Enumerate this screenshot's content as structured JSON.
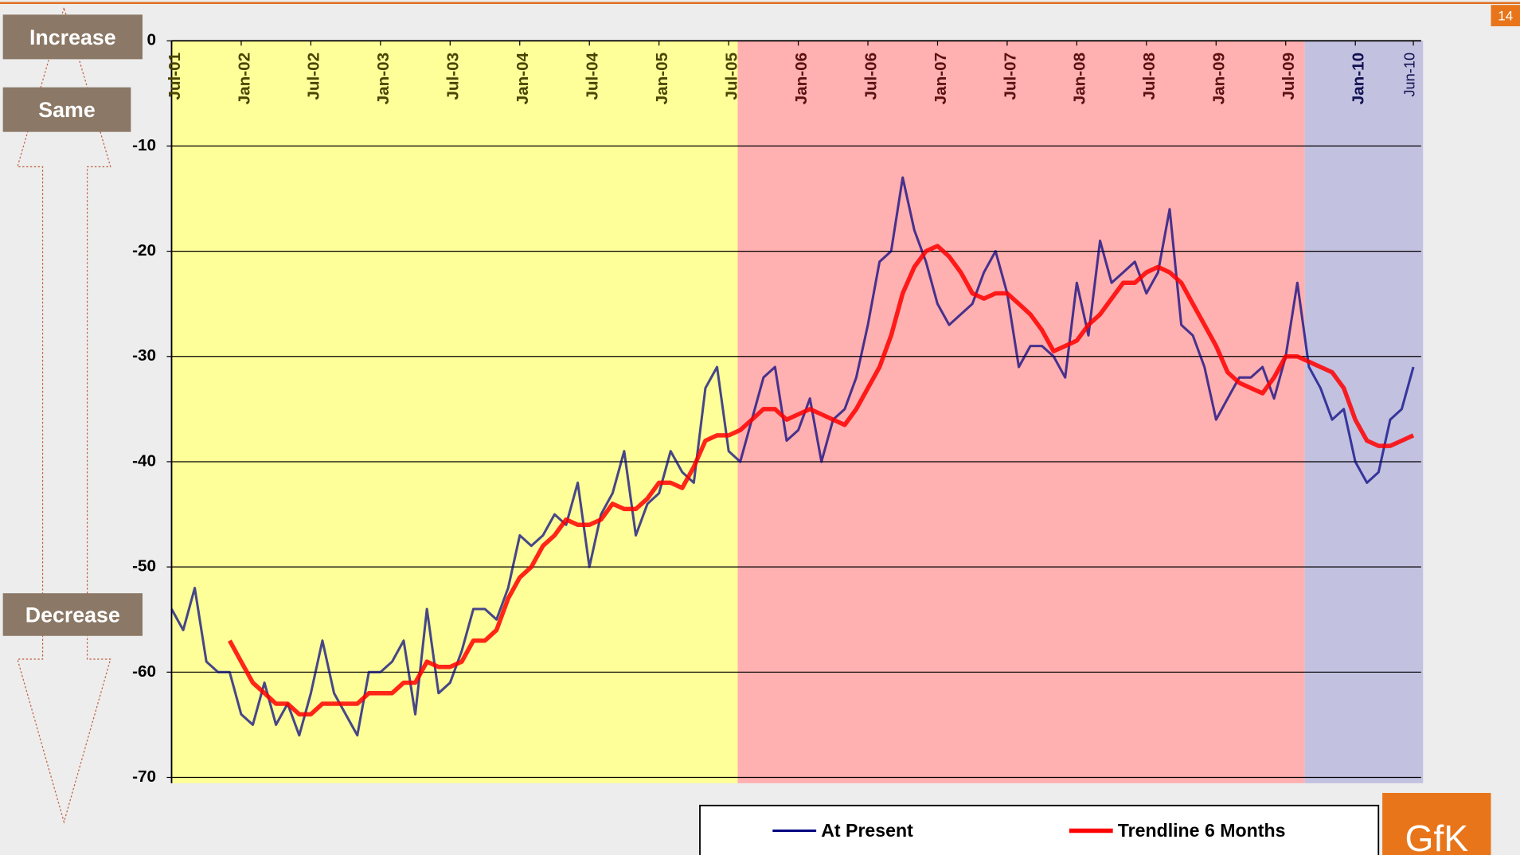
{
  "page_number": "14",
  "logo": "GfK",
  "scale_labels": [
    "Increase",
    "Same",
    "Decrease"
  ],
  "chart_data": {
    "type": "line",
    "categories": [
      "Jul-01",
      null,
      null,
      null,
      null,
      null,
      "Jan-02",
      null,
      null,
      null,
      null,
      null,
      "Jul-02",
      null,
      null,
      null,
      null,
      null,
      "Jan-03",
      null,
      null,
      null,
      null,
      null,
      "Jul-03",
      null,
      null,
      null,
      null,
      null,
      "Jan-04",
      null,
      null,
      null,
      null,
      null,
      "Jul-04",
      null,
      null,
      null,
      null,
      null,
      "Jan-05",
      null,
      null,
      null,
      null,
      null,
      "Jul-05",
      null,
      null,
      null,
      null,
      null,
      "Jan-06",
      null,
      null,
      null,
      null,
      null,
      "Jul-06",
      null,
      null,
      null,
      null,
      null,
      "Jan-07",
      null,
      null,
      null,
      null,
      null,
      "Jul-07",
      null,
      null,
      null,
      null,
      null,
      "Jan-08",
      null,
      null,
      null,
      null,
      null,
      "Jul-08",
      null,
      null,
      null,
      null,
      null,
      "Jan-09",
      null,
      null,
      null,
      null,
      null,
      "Jul-09",
      null,
      null,
      null,
      null,
      null,
      "Jan-10",
      null,
      null,
      null,
      null,
      "Jun-10"
    ],
    "series": [
      {
        "name": "At Present",
        "color": "#000080",
        "values": [
          -54,
          -56,
          -52,
          -59,
          -60,
          -60,
          -64,
          -65,
          -61,
          -65,
          -63,
          -66,
          -62,
          -57,
          -62,
          -64,
          -66,
          -60,
          -60,
          -59,
          -57,
          -64,
          -54,
          -62,
          -61,
          -58,
          -54,
          -54,
          -55,
          -52,
          -47,
          -48,
          -47,
          -45,
          -46,
          -42,
          -50,
          -45,
          -43,
          -39,
          -47,
          -44,
          -43,
          -39,
          -41,
          -42,
          -33,
          -31,
          -39,
          -40,
          -36,
          -32,
          -31,
          -38,
          -37,
          -34,
          -40,
          -36,
          -35,
          -32,
          -27,
          -21,
          -20,
          -13,
          -18,
          -21,
          -25,
          -27,
          -26,
          -25,
          -22,
          -20,
          -24,
          -31,
          -29,
          -29,
          -30,
          -32,
          -23,
          -28,
          -19,
          -23,
          -22,
          -21,
          -24,
          -22,
          -16,
          -27,
          -28,
          -31,
          -36,
          -34,
          -32,
          -32,
          -31,
          -34,
          -30,
          -23,
          -31,
          -33,
          -36,
          -35,
          -40,
          -42,
          -41,
          -36,
          -35,
          -31
        ]
      },
      {
        "name": "Trendline 6 Months",
        "color": "#ff0000",
        "values": [
          null,
          null,
          null,
          null,
          null,
          -57,
          -59,
          -61,
          -62,
          -63,
          -63,
          -64,
          -64,
          -63,
          -63,
          -63,
          -63,
          -62,
          -62,
          -62,
          -61,
          -61,
          -59,
          -59.5,
          -59.5,
          -59,
          -57,
          -57,
          -56,
          -53,
          -51,
          -50,
          -48,
          -47,
          -45.5,
          -46,
          -46,
          -45.5,
          -44,
          -44.5,
          -44.5,
          -43.5,
          -42,
          -42,
          -42.5,
          -40.5,
          -38,
          -37.5,
          -37.5,
          -37,
          -36,
          -35,
          -35,
          -36,
          -35.5,
          -35,
          -35.5,
          -36,
          -36.5,
          -35,
          -33,
          -31,
          -28,
          -24,
          -21.5,
          -20,
          -19.5,
          -20.5,
          -22,
          -24,
          -24.5,
          -24,
          -24,
          -25,
          -26,
          -27.5,
          -29.5,
          -29,
          -28.5,
          -27,
          -26,
          -24.5,
          -23,
          -23,
          -22,
          -21.5,
          -22,
          -23,
          -25,
          -27,
          -29,
          -31.5,
          -32.5,
          -33,
          -33.5,
          -32,
          -30,
          -30,
          -30.5,
          -31,
          -31.5,
          -33,
          -36,
          -38,
          -38.5,
          -38.5,
          -38,
          -37.5
        ]
      }
    ],
    "ylim": [
      -70,
      0
    ],
    "yticks": [
      0,
      -10,
      -20,
      -30,
      -40,
      -50,
      -60,
      -70
    ],
    "grid": true
  }
}
